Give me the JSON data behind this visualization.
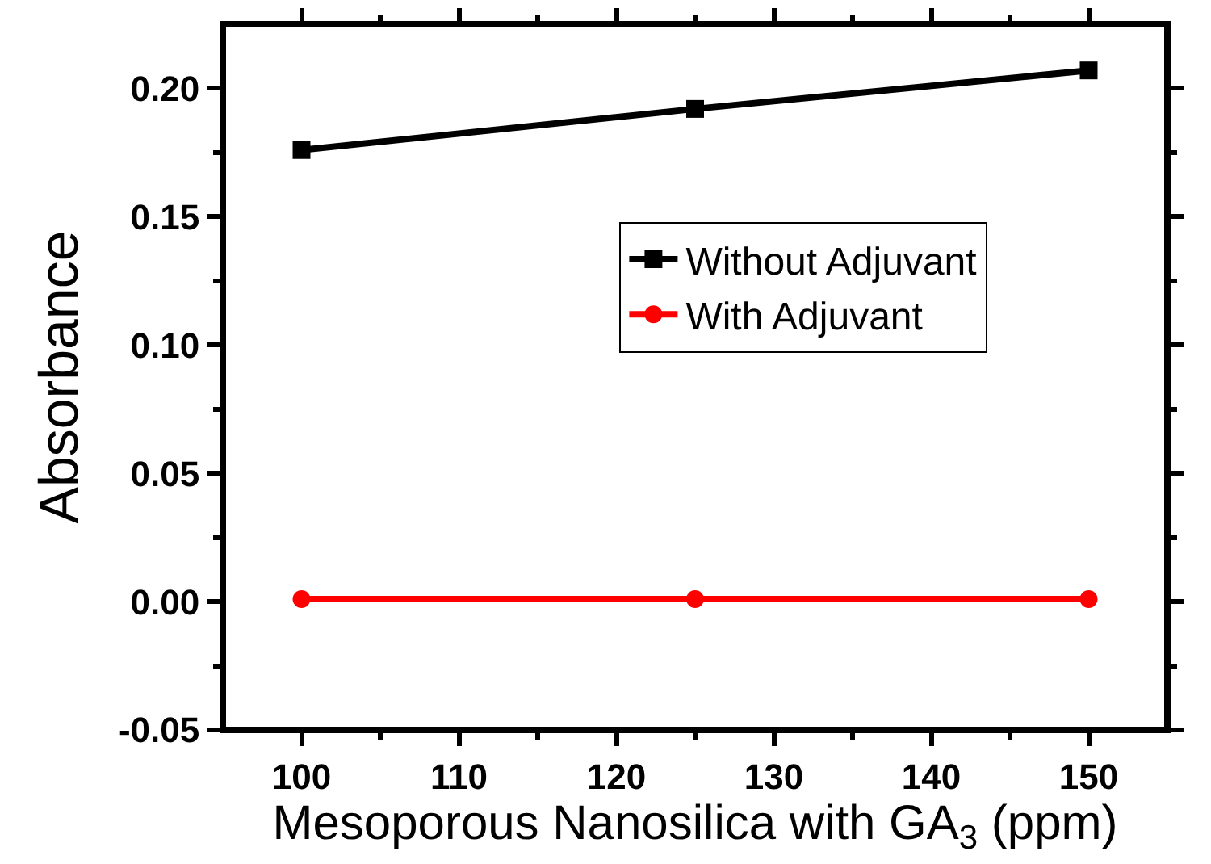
{
  "chart_data": {
    "type": "line",
    "xlabel": "Mesoporous Nanosilica with GA$_{3}$ (ppm)",
    "ylabel": "Absorbance",
    "x": [
      100,
      125,
      150
    ],
    "series": [
      {
        "name": "Without Adjuvant",
        "color": "#000000",
        "values": [
          0.176,
          0.192,
          0.207
        ],
        "marker": "square"
      },
      {
        "name": "With Adjuvant",
        "color": "#ff0000",
        "values": [
          0.001,
          0.001,
          0.001
        ],
        "marker": "circle"
      }
    ],
    "xlim": [
      95,
      155
    ],
    "xticks": [
      100,
      110,
      120,
      130,
      140,
      150
    ],
    "ylim": [
      -0.05,
      0.225
    ],
    "yticks": [
      {
        "value": -0.05,
        "label": "-0.05"
      },
      {
        "value": 0,
        "label": "0.00"
      },
      {
        "value": 0.05,
        "label": "0.05"
      },
      {
        "value": 0.1,
        "label": "0.10"
      },
      {
        "value": 0.15,
        "label": "0.15"
      },
      {
        "value": 0.2,
        "label": "0.20"
      }
    ],
    "grid": false,
    "legend": "right",
    "line_style": "solid"
  }
}
